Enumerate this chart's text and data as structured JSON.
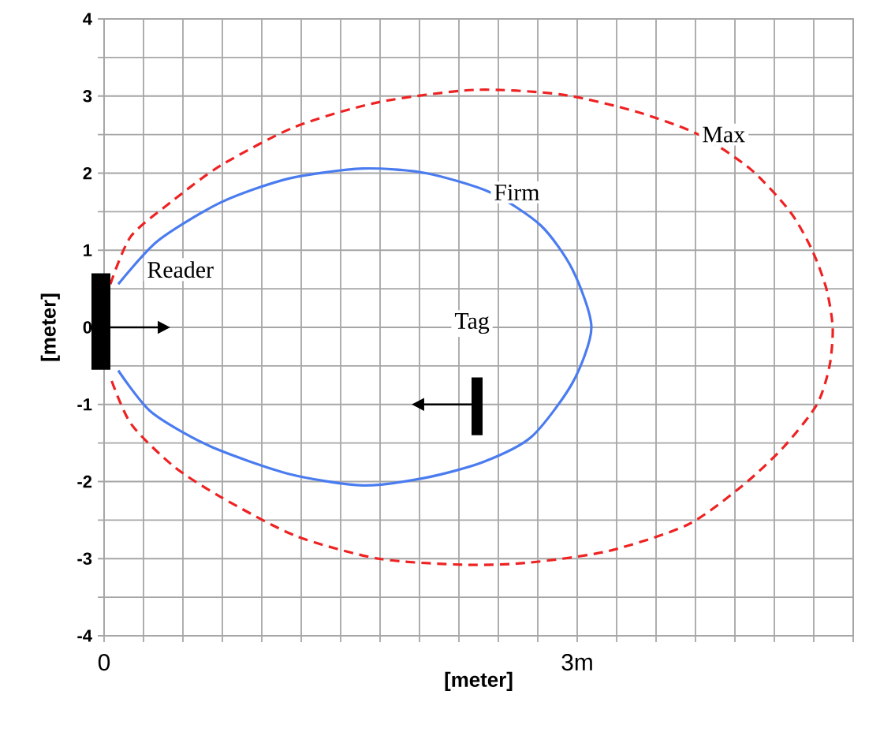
{
  "chart_data": {
    "type": "line",
    "xlabel": "[meter]",
    "ylabel": "[meter]",
    "xlim": [
      0,
      4.75
    ],
    "ylim": [
      -4,
      4
    ],
    "xticks": [
      {
        "value": 0,
        "label": "0"
      },
      {
        "value": 0.25,
        "label": null
      },
      {
        "value": 0.5,
        "label": null
      },
      {
        "value": 0.75,
        "label": null
      },
      {
        "value": 1,
        "label": null
      },
      {
        "value": 1.25,
        "label": null
      },
      {
        "value": 1.5,
        "label": null
      },
      {
        "value": 1.75,
        "label": null
      },
      {
        "value": 2,
        "label": null
      },
      {
        "value": 2.25,
        "label": null
      },
      {
        "value": 2.5,
        "label": null
      },
      {
        "value": 2.75,
        "label": null
      },
      {
        "value": 3,
        "label": "3m"
      },
      {
        "value": 3.25,
        "label": null
      },
      {
        "value": 3.5,
        "label": null
      },
      {
        "value": 3.75,
        "label": null
      },
      {
        "value": 4,
        "label": null
      },
      {
        "value": 4.25,
        "label": null
      },
      {
        "value": 4.5,
        "label": null
      },
      {
        "value": 4.75,
        "label": null
      }
    ],
    "yticks": [
      -4,
      {
        "value": -3.5,
        "label": null
      },
      -3,
      {
        "value": -2.5,
        "label": null
      },
      -2,
      {
        "value": -1.5,
        "label": null
      },
      -1,
      {
        "value": -0.5,
        "label": null
      },
      0,
      {
        "value": 0.5,
        "label": null
      },
      1,
      {
        "value": 1.5,
        "label": null
      },
      2,
      {
        "value": 2.5,
        "label": null
      },
      3,
      {
        "value": 3.5,
        "label": null
      },
      4
    ],
    "grid": true,
    "marker": "none",
    "series": [
      {
        "name": "Max",
        "color": "#ee2222",
        "line_style": "dashed",
        "x": [
          0.04,
          0.17,
          0.44,
          0.74,
          1.21,
          1.74,
          2.35,
          2.9,
          3.37,
          3.77,
          4.1,
          4.35,
          4.49,
          4.58,
          4.62,
          4.6,
          4.52,
          4.31,
          4.05,
          3.7,
          3.2,
          2.7,
          2.3,
          1.74,
          1.21,
          0.74,
          0.44,
          0.17,
          0.04
        ],
        "values": [
          0.56,
          1.18,
          1.65,
          2.1,
          2.6,
          2.92,
          3.08,
          3.02,
          2.8,
          2.5,
          2.05,
          1.5,
          1.0,
          0.5,
          0,
          -0.5,
          -1.0,
          -1.55,
          -2.05,
          -2.56,
          -2.9,
          -3.05,
          -3.08,
          -3.0,
          -2.7,
          -2.2,
          -1.8,
          -1.25,
          -0.65
        ]
      },
      {
        "name": "Firm",
        "color": "#4a7cf0",
        "line_style": "solid",
        "x": [
          0.09,
          0.34,
          0.74,
          1.17,
          1.64,
          2.04,
          2.45,
          2.77,
          2.97,
          3.09,
          2.97,
          2.71,
          2.4,
          2.04,
          1.64,
          1.17,
          0.67,
          0.3,
          0.09
        ],
        "values": [
          0.56,
          1.12,
          1.62,
          1.93,
          2.06,
          2.0,
          1.75,
          1.32,
          0.75,
          0,
          -0.72,
          -1.42,
          -1.75,
          -1.95,
          -2.05,
          -1.9,
          -1.54,
          -1.1,
          -0.56
        ]
      }
    ],
    "annotations": [
      "Reader",
      "Tag"
    ]
  }
}
